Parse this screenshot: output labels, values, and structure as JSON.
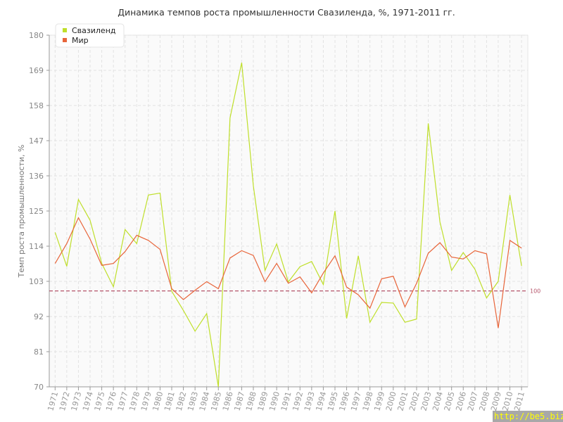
{
  "chart_data": {
    "type": "line",
    "title": "Динамика темпов роста промышленности Свазиленда, %, 1971-2011 гг.",
    "xlabel": "",
    "ylabel": "Темп роста промышленности, %",
    "ylim": [
      70,
      180
    ],
    "yticks": [
      "70",
      "81",
      "92",
      "103",
      "114",
      "125",
      "136",
      "147",
      "158",
      "169",
      "180"
    ],
    "grid": true,
    "legend": "top-left",
    "x": [
      "1971",
      "1972",
      "1973",
      "1974",
      "1975",
      "1976",
      "1977",
      "1978",
      "1979",
      "1980",
      "1981",
      "1982",
      "1983",
      "1984",
      "1985",
      "1986",
      "1987",
      "1988",
      "1989",
      "1990",
      "1991",
      "1992",
      "1993",
      "1994",
      "1995",
      "1996",
      "1997",
      "1998",
      "1999",
      "2000",
      "2001",
      "2002",
      "2003",
      "2004",
      "2005",
      "2006",
      "2007",
      "2008",
      "2009",
      "2010",
      "2011"
    ],
    "series": [
      {
        "name": "Свазиленд",
        "color": "#bfdf2a",
        "values": [
          118.3,
          107.7,
          128.6,
          122.1,
          108.6,
          101.3,
          119.2,
          114.8,
          130.0,
          130.6,
          99.9,
          93.9,
          87.4,
          92.9,
          70.0,
          154.1,
          171.4,
          132.9,
          106.4,
          114.7,
          102.8,
          107.6,
          109.2,
          102.0,
          125.0,
          91.4,
          111.0,
          90.2,
          96.4,
          96.2,
          90.2,
          91.2,
          152.4,
          121.6,
          106.4,
          112.0,
          106.8,
          97.8,
          103.0,
          130.0,
          107.8
        ]
      },
      {
        "name": "Мир",
        "color": "#e8653a",
        "values": [
          108.6,
          114.8,
          122.9,
          116.2,
          108.0,
          108.6,
          112.3,
          117.4,
          115.8,
          113.0,
          100.7,
          97.3,
          100.2,
          102.9,
          100.7,
          110.3,
          112.6,
          111.1,
          102.9,
          108.6,
          102.4,
          104.4,
          99.4,
          105.6,
          111.0,
          101.2,
          98.8,
          94.6,
          103.8,
          104.6,
          95.0,
          102.4,
          111.8,
          115.1,
          110.6,
          110.0,
          112.6,
          111.6,
          88.4,
          115.8,
          113.4
        ]
      }
    ],
    "reference_line": {
      "value": 100,
      "label": "100",
      "color": "#b5546a"
    }
  },
  "watermark": "http://be5.biz"
}
